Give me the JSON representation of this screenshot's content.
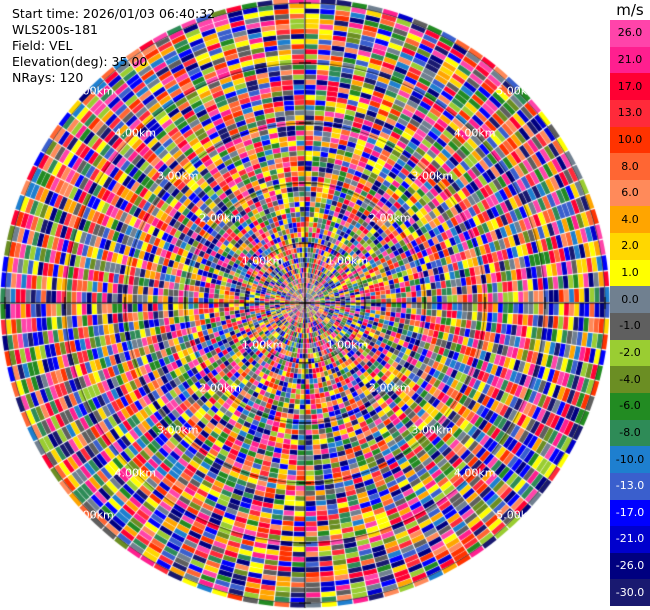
{
  "header": {
    "start_time": "Start time: 2026/01/03 06:40:32",
    "instrument": "WLS200s-181",
    "field": "Field: VEL",
    "elevation": "Elevation(deg): 35.00",
    "nrays": "NRays: 120"
  },
  "colorbar": {
    "unit": "m/s",
    "ticks": [
      "26.0",
      "21.0",
      "17.0",
      "13.0",
      "10.0",
      "8.0",
      "6.0",
      "4.0",
      "2.0",
      "1.0",
      "0.0",
      "-1.0",
      "-2.0",
      "-4.0",
      "-6.0",
      "-8.0",
      "-10.0",
      "-13.0",
      "-17.0",
      "-21.0",
      "-26.0",
      "-30.0"
    ],
    "colors": [
      "#ff44aa",
      "#ff1f8f",
      "#ff0033",
      "#ff2a3a",
      "#ff3300",
      "#ff6633",
      "#ff8a5a",
      "#ffa500",
      "#ffd700",
      "#ffff00",
      "#708090",
      "#5f5f5f",
      "#9acd32",
      "#6b8e23",
      "#228b22",
      "#2e8b57",
      "#1e7fcf",
      "#3a5fcd",
      "#0000ff",
      "#0000cd",
      "#000080",
      "#191970"
    ]
  },
  "ring_labels": {
    "r1": "1.00km",
    "r2": "2.00km",
    "r3": "3.00km",
    "r4": "4.00km",
    "r5": "5.00km"
  }
}
